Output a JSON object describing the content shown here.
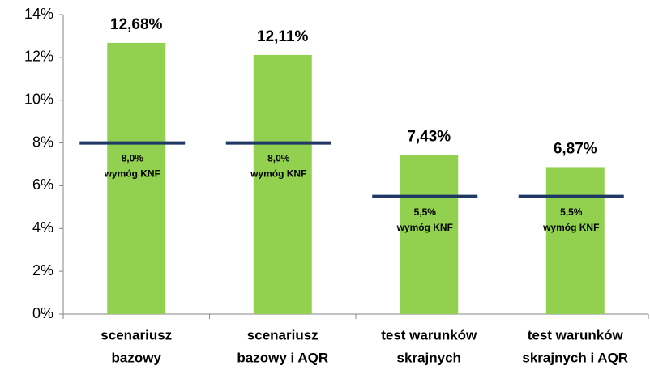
{
  "chart_data": {
    "type": "bar",
    "categories": [
      [
        "scenariusz",
        "bazowy"
      ],
      [
        "scenariusz",
        "bazowy i AQR"
      ],
      [
        "test warunków",
        "skrajnych"
      ],
      [
        "test warunków",
        "skrajnych i AQR"
      ]
    ],
    "series": [
      {
        "color": "#92d050",
        "values": [
          12.68,
          12.11,
          7.43,
          6.87
        ],
        "value_labels": [
          "12,68%",
          "12,11%",
          "7,43%",
          "6,87%"
        ]
      },
      {
        "name": "wymóg KNF",
        "color": "#1f3864",
        "label_color": "#1f4e79",
        "values": [
          8.0,
          8.0,
          5.5,
          5.5
        ],
        "value_labels": [
          "8,0%",
          "8,0%",
          "5,5%",
          "5,5%"
        ]
      }
    ],
    "ylim": [
      0,
      14
    ],
    "yticks": [
      {
        "value": 0,
        "label": "0%"
      },
      {
        "value": 2,
        "label": "2%"
      },
      {
        "value": 4,
        "label": "4%"
      },
      {
        "value": 6,
        "label": "6%"
      },
      {
        "value": 8,
        "label": "8%"
      },
      {
        "value": 10,
        "label": "10%"
      },
      {
        "value": 12,
        "label": "12%"
      },
      {
        "value": 14,
        "label": "14%"
      }
    ],
    "grid": false
  }
}
